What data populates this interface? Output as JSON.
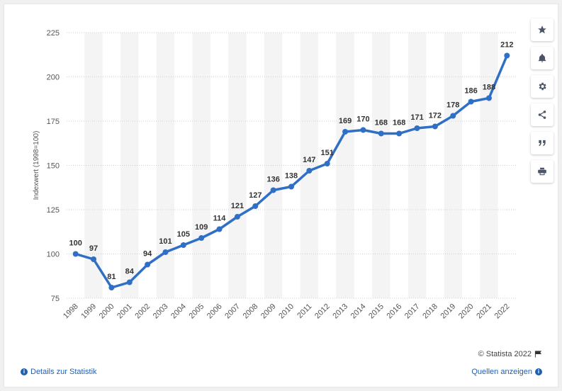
{
  "chart_data": {
    "type": "line",
    "ylabel": "Indexwert (1998=100)",
    "xlabel": "",
    "ylim": [
      75,
      225
    ],
    "yticks": [
      75,
      100,
      125,
      150,
      175,
      200,
      225
    ],
    "x": [
      "1998",
      "1999",
      "2000",
      "2001",
      "2002",
      "2003",
      "2004",
      "2005",
      "2006",
      "2007",
      "2008",
      "2009",
      "2010",
      "2011",
      "2012",
      "2013",
      "2014",
      "2015",
      "2016",
      "2017",
      "2018",
      "2019",
      "2020",
      "2021",
      "2022"
    ],
    "values": [
      100,
      97,
      81,
      84,
      94,
      101,
      105,
      109,
      114,
      121,
      127,
      136,
      138,
      147,
      151,
      169,
      170,
      168,
      168,
      171,
      172,
      178,
      186,
      188,
      212
    ],
    "data_labels": [
      "100",
      "97",
      "81",
      "84",
      "94",
      "101",
      "105",
      "109",
      "114",
      "121",
      "127",
      "136",
      "138",
      "147",
      "151",
      "169",
      "170",
      "168",
      "168",
      "171",
      "172",
      "178",
      "186",
      "188",
      "212"
    ],
    "grid": true,
    "alternating_bands": true,
    "line_color": "#2f6fc6"
  },
  "sidebar": {
    "buttons": [
      {
        "icon": "star-icon"
      },
      {
        "icon": "bell-icon"
      },
      {
        "icon": "gear-icon"
      },
      {
        "icon": "share-icon"
      },
      {
        "icon": "quote-icon"
      },
      {
        "icon": "print-icon"
      }
    ]
  },
  "footer": {
    "copyright": "© Statista 2022",
    "details_link": "Details zur Statistik",
    "sources_link": "Quellen anzeigen"
  }
}
